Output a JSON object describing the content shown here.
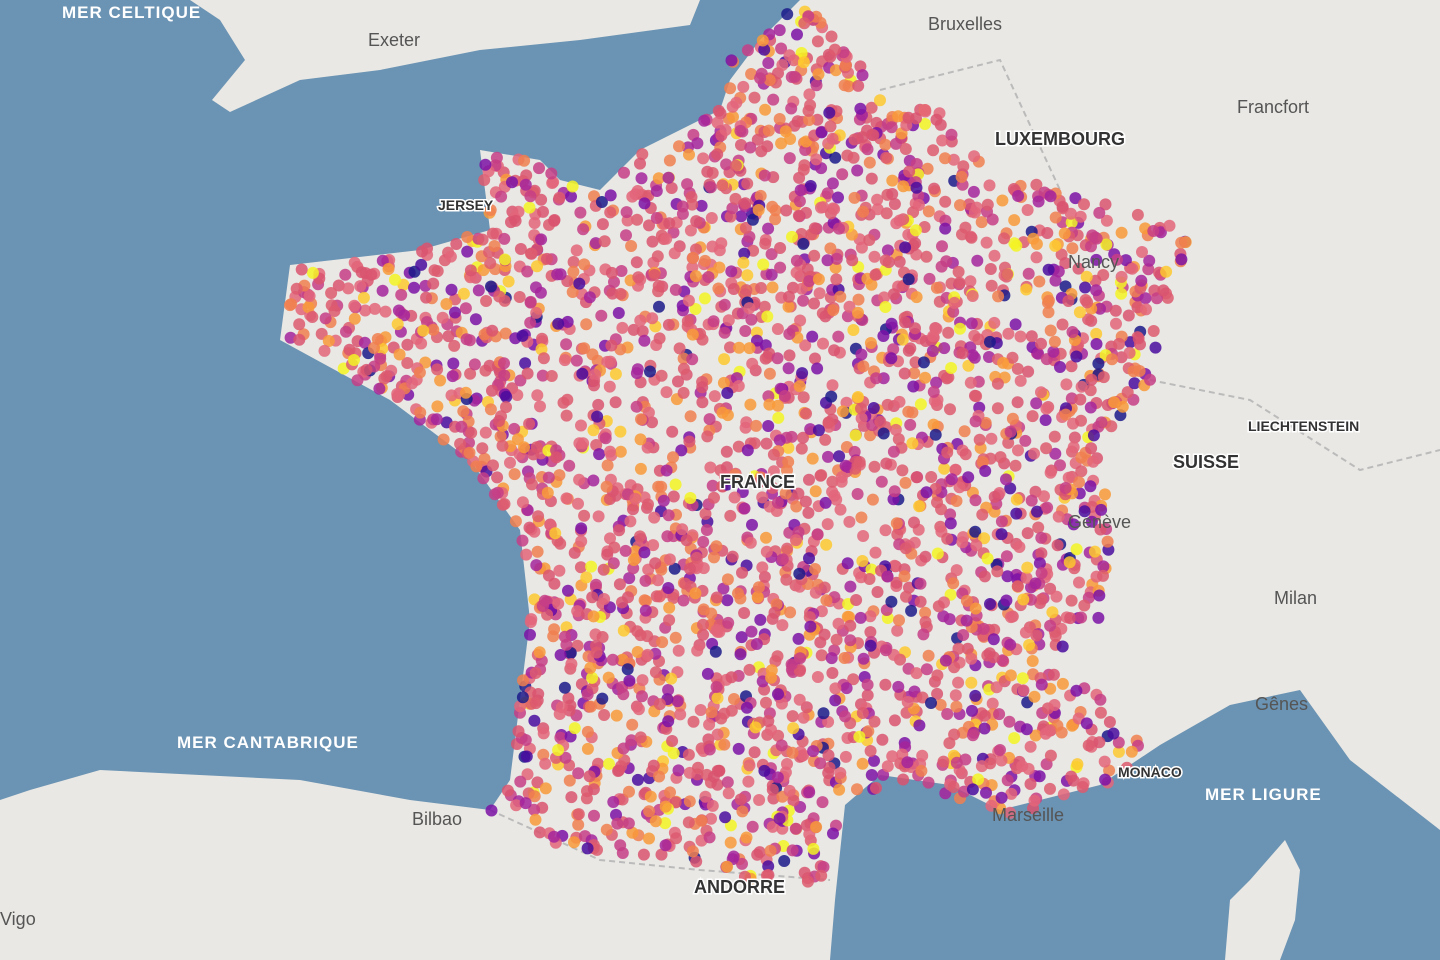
{
  "labels": [
    "MER CELTIQUE",
    "Exeter",
    "Bruxelles",
    "Francfort",
    "LUXEMBOURG",
    "JERSEY",
    "Nancy",
    "LIECHTENSTEIN",
    "SUISSE",
    "FRANCE",
    "Genève",
    "Milan",
    "Gênes",
    "MER CANTABRIQUE",
    "Bilbao",
    "ANDORRE",
    "MONACO",
    "Marseille",
    "MER LIGURE",
    "Vigo"
  ]
}
